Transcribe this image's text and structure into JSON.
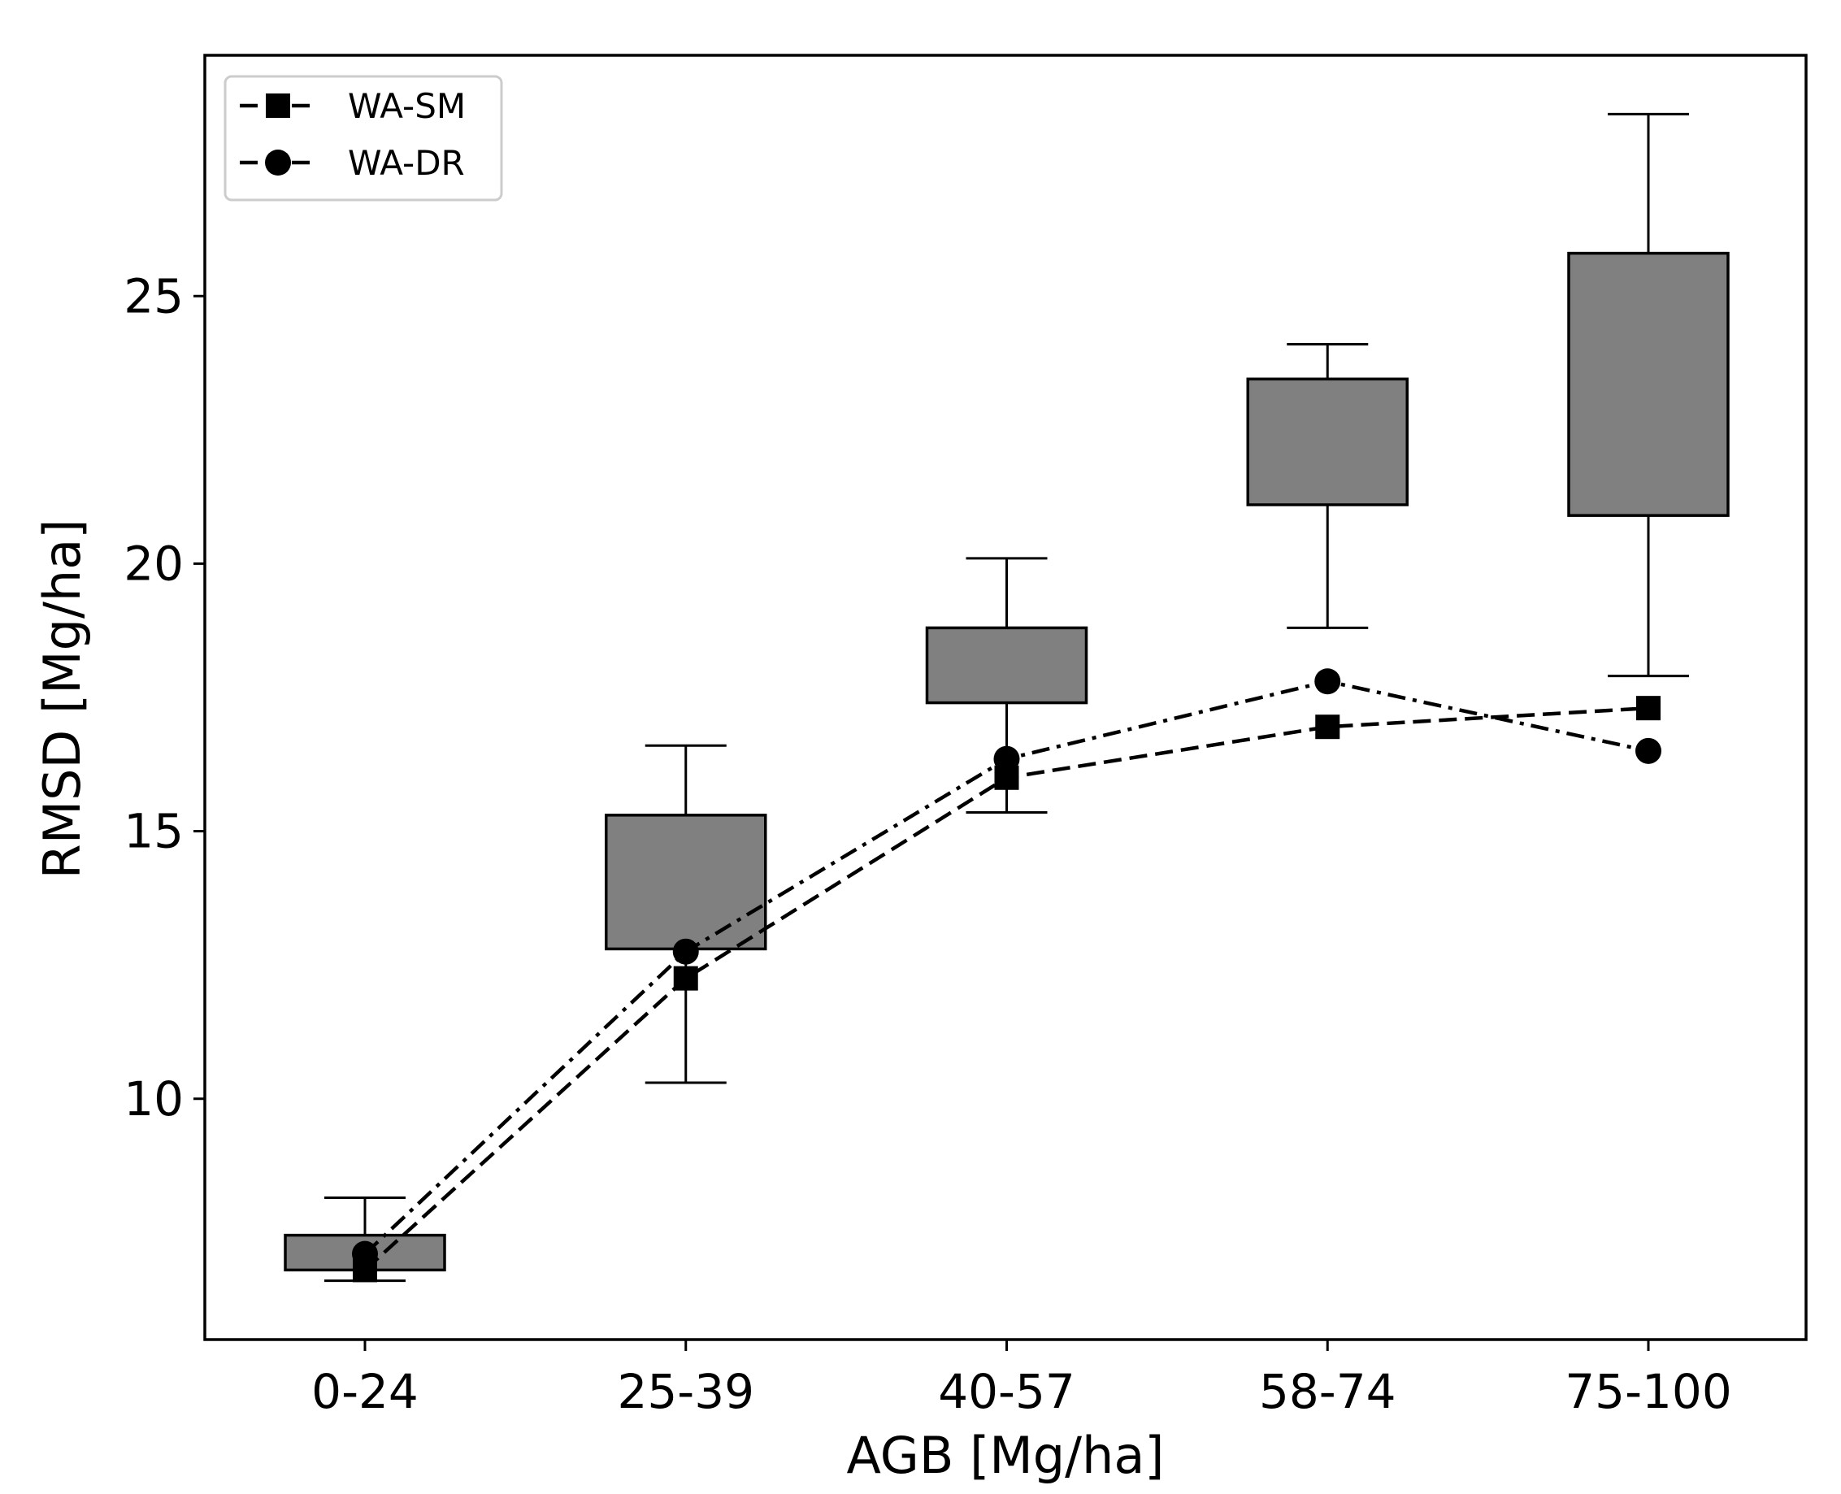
{
  "chart_data": {
    "type": "box",
    "title": "",
    "xlabel": "AGB [Mg/ha]",
    "ylabel": "RMSD [Mg/ha]",
    "categories": [
      "0-24",
      "25-39",
      "40-57",
      "58-74",
      "75-100"
    ],
    "ylim": [
      5.5,
      29.5
    ],
    "yticks": [
      10,
      15,
      20,
      25
    ],
    "boxes": [
      {
        "category": "0-24",
        "whisker_low": 6.6,
        "q1": 6.8,
        "q3": 7.45,
        "whisker_high": 8.15
      },
      {
        "category": "25-39",
        "whisker_low": 10.3,
        "q1": 12.8,
        "q3": 15.3,
        "whisker_high": 16.6
      },
      {
        "category": "40-57",
        "whisker_low": 15.35,
        "q1": 17.4,
        "q3": 18.8,
        "whisker_high": 20.1
      },
      {
        "category": "58-74",
        "whisker_low": 18.8,
        "q1": 21.1,
        "q3": 23.45,
        "whisker_high": 24.1
      },
      {
        "category": "75-100",
        "whisker_low": 17.9,
        "q1": 20.9,
        "q3": 25.8,
        "whisker_high": 28.4
      }
    ],
    "series": [
      {
        "name": "WA-SM",
        "marker": "square",
        "linestyle": "dashed",
        "values": [
          6.8,
          12.25,
          16.0,
          16.95,
          17.3
        ]
      },
      {
        "name": "WA-DR",
        "marker": "circle",
        "linestyle": "dashdot",
        "values": [
          7.1,
          12.75,
          16.35,
          17.8,
          16.5
        ]
      }
    ],
    "legend": {
      "position": "top-left",
      "entries": [
        "WA-SM",
        "WA-DR"
      ]
    },
    "colors": {
      "box_fill": "#808080",
      "line": "#000000"
    }
  }
}
